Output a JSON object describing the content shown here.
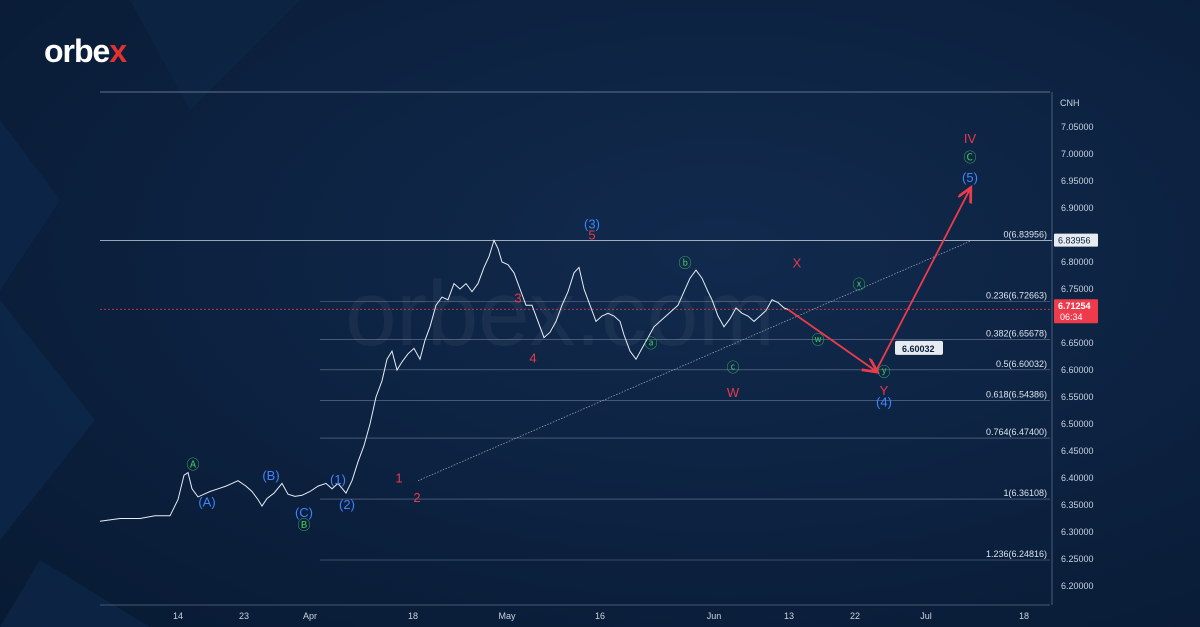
{
  "brand": {
    "name_main": "orbe",
    "name_accent": "x",
    "watermark": "orbex.com"
  },
  "colors": {
    "background": "#0c213f",
    "price_line": "#e6edf5",
    "wave_red": "#e8394a",
    "wave_blue": "#3f83ff",
    "wave_green": "#3fc15b",
    "arrow": "#ee3b4b",
    "fib_line": "#8ea0b8"
  },
  "chart_data": {
    "type": "line",
    "title": "",
    "symbol": "CNH",
    "ylim": [
      6.17,
      7.1
    ],
    "y_ticks": [
      "7.05000",
      "7.00000",
      "6.95000",
      "6.90000",
      "6.80000",
      "6.75000",
      "6.70000",
      "6.65000",
      "6.60000",
      "6.55000",
      "6.50000",
      "6.45000",
      "6.40000",
      "6.35000",
      "6.30000",
      "6.25000",
      "6.20000"
    ],
    "x_ticks": [
      "14",
      "23",
      "Apr",
      "18",
      "May",
      "16",
      "Jun",
      "13",
      "22",
      "Jul",
      "18"
    ],
    "price_points": [
      [
        0,
        6.32
      ],
      [
        20,
        6.325
      ],
      [
        40,
        6.325
      ],
      [
        55,
        6.33
      ],
      [
        70,
        6.33
      ],
      [
        78,
        6.36
      ],
      [
        84,
        6.405
      ],
      [
        88,
        6.41
      ],
      [
        92,
        6.38
      ],
      [
        98,
        6.365
      ],
      [
        104,
        6.37
      ],
      [
        110,
        6.375
      ],
      [
        118,
        6.38
      ],
      [
        126,
        6.385
      ],
      [
        132,
        6.39
      ],
      [
        138,
        6.395
      ],
      [
        146,
        6.385
      ],
      [
        152,
        6.375
      ],
      [
        158,
        6.36
      ],
      [
        162,
        6.348
      ],
      [
        167,
        6.362
      ],
      [
        174,
        6.372
      ],
      [
        182,
        6.39
      ],
      [
        188,
        6.37
      ],
      [
        195,
        6.366
      ],
      [
        202,
        6.368
      ],
      [
        210,
        6.375
      ],
      [
        218,
        6.385
      ],
      [
        226,
        6.39
      ],
      [
        232,
        6.38
      ],
      [
        238,
        6.39
      ],
      [
        246,
        6.372
      ],
      [
        252,
        6.395
      ],
      [
        258,
        6.43
      ],
      [
        264,
        6.46
      ],
      [
        270,
        6.5
      ],
      [
        276,
        6.55
      ],
      [
        282,
        6.58
      ],
      [
        287,
        6.62
      ],
      [
        292,
        6.635
      ],
      [
        297,
        6.6
      ],
      [
        302,
        6.615
      ],
      [
        308,
        6.63
      ],
      [
        314,
        6.64
      ],
      [
        320,
        6.62
      ],
      [
        325,
        6.655
      ],
      [
        330,
        6.68
      ],
      [
        336,
        6.72
      ],
      [
        342,
        6.735
      ],
      [
        348,
        6.73
      ],
      [
        354,
        6.76
      ],
      [
        360,
        6.75
      ],
      [
        366,
        6.76
      ],
      [
        372,
        6.745
      ],
      [
        378,
        6.76
      ],
      [
        384,
        6.79
      ],
      [
        389,
        6.81
      ],
      [
        394,
        6.84
      ],
      [
        398,
        6.825
      ],
      [
        402,
        6.8
      ],
      [
        408,
        6.795
      ],
      [
        414,
        6.78
      ],
      [
        420,
        6.75
      ],
      [
        426,
        6.72
      ],
      [
        432,
        6.72
      ],
      [
        438,
        6.69
      ],
      [
        444,
        6.66
      ],
      [
        450,
        6.67
      ],
      [
        456,
        6.69
      ],
      [
        462,
        6.72
      ],
      [
        468,
        6.745
      ],
      [
        474,
        6.78
      ],
      [
        479,
        6.79
      ],
      [
        484,
        6.75
      ],
      [
        490,
        6.72
      ],
      [
        496,
        6.69
      ],
      [
        502,
        6.7
      ],
      [
        508,
        6.705
      ],
      [
        514,
        6.7
      ],
      [
        520,
        6.69
      ],
      [
        524,
        6.665
      ],
      [
        530,
        6.635
      ],
      [
        536,
        6.62
      ],
      [
        542,
        6.64
      ],
      [
        548,
        6.66
      ],
      [
        554,
        6.68
      ],
      [
        560,
        6.69
      ],
      [
        566,
        6.7
      ],
      [
        572,
        6.71
      ],
      [
        578,
        6.72
      ],
      [
        584,
        6.745
      ],
      [
        590,
        6.77
      ],
      [
        596,
        6.785
      ],
      [
        602,
        6.77
      ],
      [
        608,
        6.745
      ],
      [
        612,
        6.73
      ],
      [
        618,
        6.7
      ],
      [
        624,
        6.68
      ],
      [
        630,
        6.695
      ],
      [
        636,
        6.715
      ],
      [
        642,
        6.705
      ],
      [
        648,
        6.7
      ],
      [
        654,
        6.69
      ],
      [
        660,
        6.7
      ],
      [
        666,
        6.71
      ],
      [
        672,
        6.73
      ],
      [
        678,
        6.725
      ],
      [
        684,
        6.715
      ],
      [
        688,
        6.712
      ]
    ],
    "fib_levels": [
      {
        "label": "0(6.83956)",
        "value": 6.83956
      },
      {
        "label": "0.236(6.72663)",
        "value": 6.72663
      },
      {
        "label": "0.382(6.65678)",
        "value": 6.65678
      },
      {
        "label": "0.5(6.60032)",
        "value": 6.60032
      },
      {
        "label": "0.618(6.54386)",
        "value": 6.54386
      },
      {
        "label": "0.764(6.47400)",
        "value": 6.474
      },
      {
        "label": "1(6.36108)",
        "value": 6.36108
      },
      {
        "label": "1.236(6.24816)",
        "value": 6.24816
      }
    ],
    "current_price": {
      "value": 6.71254,
      "label": "6.71254",
      "countdown": "06:34"
    },
    "resistance_tag": {
      "value": 6.83956,
      "label": "6.83956"
    },
    "target_tag": {
      "value": 6.60032,
      "label": "6.60032"
    },
    "projection": [
      {
        "t": 688,
        "v": 6.712
      },
      {
        "t": 776,
        "v": 6.598
      },
      {
        "t": 870,
        "v": 6.935
      }
    ],
    "wave_labels": [
      {
        "text": "Ⓐ",
        "color": "green",
        "t": 93,
        "v": 6.417
      },
      {
        "text": "(A)",
        "color": "blue",
        "t": 107,
        "v": 6.347
      },
      {
        "text": "(B)",
        "color": "blue",
        "t": 171,
        "v": 6.396
      },
      {
        "text": "(C)",
        "color": "blue",
        "t": 204,
        "v": 6.328
      },
      {
        "text": "Ⓑ",
        "color": "green",
        "t": 204,
        "v": 6.305
      },
      {
        "text": "(1)",
        "color": "blue",
        "t": 238,
        "v": 6.389
      },
      {
        "text": "(2)",
        "color": "blue",
        "t": 247,
        "v": 6.343
      },
      {
        "text": "1",
        "color": "red",
        "t": 299,
        "v": 6.392
      },
      {
        "text": "2",
        "color": "red",
        "t": 317,
        "v": 6.356
      },
      {
        "text": "3",
        "color": "red",
        "t": 418,
        "v": 6.725
      },
      {
        "text": "4",
        "color": "red",
        "t": 433,
        "v": 6.614
      },
      {
        "text": "(3)",
        "color": "blue",
        "t": 492,
        "v": 6.862
      },
      {
        "text": "5",
        "color": "red",
        "t": 492,
        "v": 6.842
      },
      {
        "text": "ⓑ",
        "color": "green",
        "t": 585,
        "v": 6.79
      },
      {
        "text": "ⓐ",
        "color": "green",
        "t": 551,
        "v": 6.641
      },
      {
        "text": "ⓒ",
        "color": "green",
        "t": 633,
        "v": 6.596
      },
      {
        "text": "W",
        "color": "red",
        "t": 633,
        "v": 6.55
      },
      {
        "text": "X",
        "color": "red",
        "t": 697,
        "v": 6.79
      },
      {
        "text": "ⓦ",
        "color": "green",
        "t": 718,
        "v": 6.647
      },
      {
        "text": "ⓧ",
        "color": "green",
        "t": 759,
        "v": 6.75
      },
      {
        "text": "ⓨ",
        "color": "green",
        "t": 784,
        "v": 6.588
      },
      {
        "text": "Y",
        "color": "red",
        "t": 784,
        "v": 6.554
      },
      {
        "text": "(4)",
        "color": "blue",
        "t": 784,
        "v": 6.532
      },
      {
        "text": "IV",
        "color": "red",
        "t": 870,
        "v": 7.02
      },
      {
        "text": "Ⓒ",
        "color": "green",
        "t": 870,
        "v": 6.985
      },
      {
        "text": "(5)",
        "color": "blue",
        "t": 870,
        "v": 6.948
      }
    ]
  }
}
